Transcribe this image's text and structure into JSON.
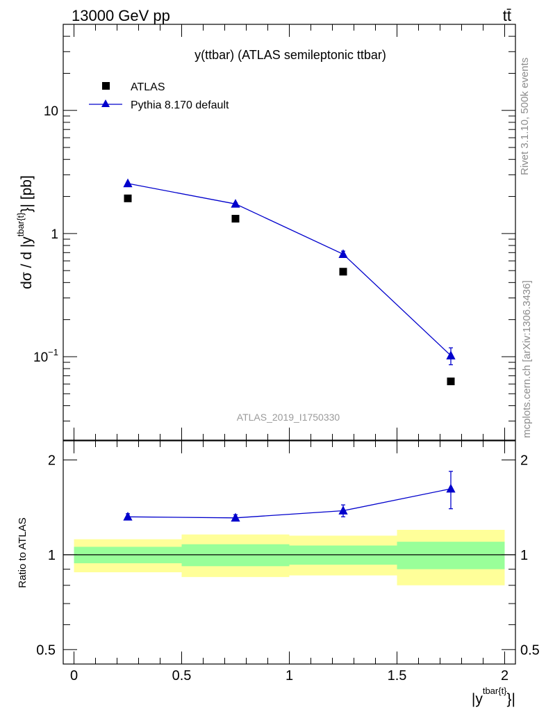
{
  "header": {
    "left_title": "13000 GeV pp",
    "right_title": "tt̄"
  },
  "side_text": {
    "rivet": "Rivet 3.1.10,  500k events",
    "mcplots": "mcplots.cern.ch [arXiv:1306.3436]"
  },
  "colors": {
    "mc": "#0000cc",
    "data": "#000000",
    "band_inner": "#99ff99",
    "band_outer": "#ffff99",
    "watermark": "#9a9a9a"
  },
  "chart_data": [
    {
      "type": "scatter",
      "panel": "main",
      "title": "y(ttbar) (ATLAS semileptonic ttbar)",
      "analysis_label": "ATLAS_2019_I1750330",
      "ylabel": "dσ / d |y^{tbar{t}}| [pb]",
      "ylabel_parts": {
        "prefix": "dσ / d |y",
        "sup": "tbar{t}",
        "suffix": "}| [pb]"
      },
      "yscale": "log",
      "ylim": [
        0.021,
        50
      ],
      "xlim": [
        -0.05,
        2.05
      ],
      "y_ticks": [
        {
          "value": 0.1,
          "base": "10",
          "exp": "−1"
        },
        {
          "value": 1,
          "label": "1"
        },
        {
          "value": 10,
          "label": "10"
        }
      ],
      "legend_position": "top-left",
      "series": [
        {
          "name": "ATLAS",
          "marker": "square",
          "x": [
            0.25,
            0.75,
            1.25,
            1.75
          ],
          "y": [
            1.93,
            1.32,
            0.49,
            0.063
          ]
        },
        {
          "name": "Pythia 8.170 default",
          "marker": "triangle",
          "line": true,
          "x": [
            0.25,
            0.75,
            1.25,
            1.75
          ],
          "y": [
            2.55,
            1.74,
            0.68,
            0.102
          ],
          "yerr": [
            0.05,
            0.04,
            0.04,
            0.016
          ]
        }
      ]
    },
    {
      "type": "line",
      "panel": "ratio",
      "ylabel": "Ratio to ATLAS",
      "xlabel": "|y^{tbar{t}}|",
      "xlabel_parts": {
        "prefix": "|y",
        "sup": "tbar{t}",
        "suffix": "}|"
      },
      "ylim": [
        0.45,
        2.3
      ],
      "xlim": [
        -0.05,
        2.05
      ],
      "x_ticks": [
        "0",
        "0.5",
        "1",
        "1.5",
        "2"
      ],
      "x_tick_values": [
        0,
        0.5,
        1,
        1.5,
        2
      ],
      "y_ticks": [
        "0.5",
        "1",
        "2"
      ],
      "y_tick_values": [
        0.5,
        1,
        2
      ],
      "reference_line": 1,
      "bands": [
        {
          "x0": 0.0,
          "x1": 0.5,
          "inner": [
            0.94,
            1.06
          ],
          "outer": [
            0.88,
            1.12
          ]
        },
        {
          "x0": 0.5,
          "x1": 1.0,
          "inner": [
            0.92,
            1.08
          ],
          "outer": [
            0.85,
            1.16
          ]
        },
        {
          "x0": 1.0,
          "x1": 1.5,
          "inner": [
            0.93,
            1.07
          ],
          "outer": [
            0.86,
            1.15
          ]
        },
        {
          "x0": 1.5,
          "x1": 2.0,
          "inner": [
            0.9,
            1.1
          ],
          "outer": [
            0.8,
            1.2
          ]
        }
      ],
      "series": [
        {
          "name": "Pythia 8.170 default",
          "marker": "triangle",
          "x": [
            0.25,
            0.75,
            1.25,
            1.75
          ],
          "y": [
            1.32,
            1.31,
            1.38,
            1.62
          ],
          "yerr": [
            0.03,
            0.03,
            0.06,
            0.22
          ]
        }
      ]
    }
  ]
}
